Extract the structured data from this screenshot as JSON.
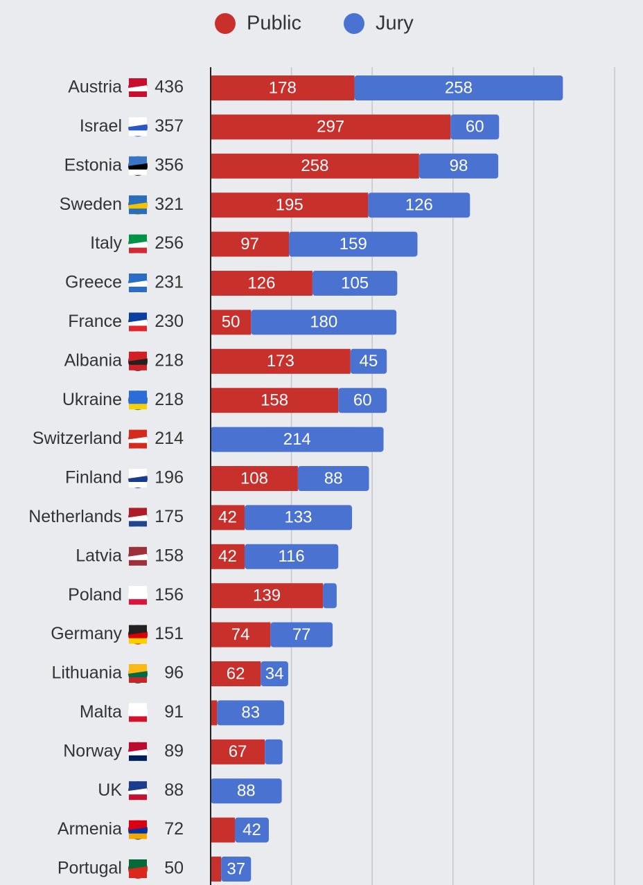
{
  "chart_data": {
    "type": "stacked-bar-horizontal",
    "categories": [
      "Austria",
      "Israel",
      "Estonia",
      "Sweden",
      "Italy",
      "Greece",
      "France",
      "Albania",
      "Ukraine",
      "Switzerland",
      "Finland",
      "Netherlands",
      "Latvia",
      "Poland",
      "Germany",
      "Lithuania",
      "Malta",
      "Norway",
      "UK",
      "Armenia",
      "Portugal"
    ],
    "totals": [
      436,
      357,
      356,
      321,
      256,
      231,
      230,
      218,
      218,
      214,
      196,
      175,
      158,
      156,
      151,
      96,
      91,
      89,
      88,
      72,
      50
    ],
    "series": [
      {
        "name": "Public",
        "color": "#c8302c",
        "values": [
          178,
          297,
          258,
          195,
          97,
          126,
          50,
          173,
          158,
          0,
          108,
          42,
          42,
          139,
          74,
          62,
          8,
          67,
          0,
          30,
          13
        ]
      },
      {
        "name": "Jury",
        "color": "#4a72d0",
        "values": [
          258,
          60,
          98,
          126,
          159,
          105,
          180,
          45,
          60,
          214,
          88,
          133,
          116,
          17,
          77,
          34,
          83,
          22,
          88,
          42,
          37
        ]
      }
    ],
    "xlim": [
      0,
      500
    ],
    "xticks": [
      0,
      100,
      200,
      300,
      400,
      500
    ],
    "grid": true
  }
}
